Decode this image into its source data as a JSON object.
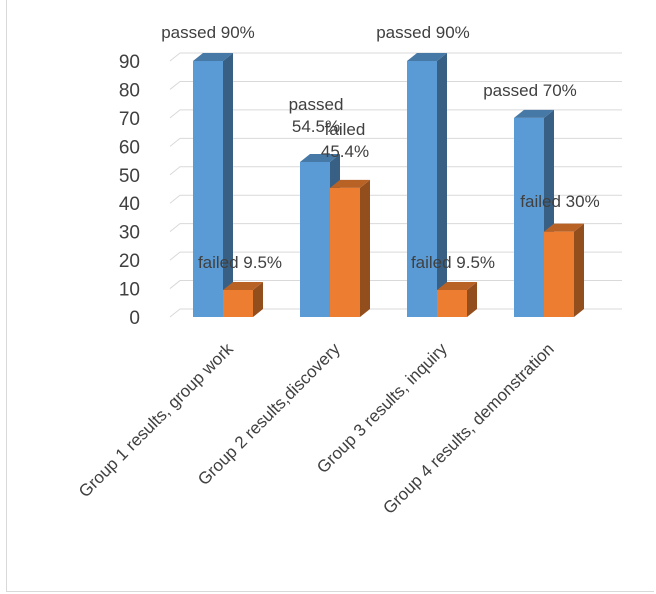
{
  "chart_data": {
    "type": "bar",
    "style": "3d-clustered-column",
    "categories": [
      "Group 1 results, group work",
      "Group 2 results,discovery",
      "Group 3  results, inquiry",
      "Group 4  results, demonstration"
    ],
    "series": [
      {
        "values": [
          90,
          54.5,
          90,
          70
        ],
        "color": "#5b9bd5",
        "labels": [
          "passed 90%",
          "passed 54.5%",
          "passed 90%",
          "passed 70%"
        ]
      },
      {
        "values": [
          9.5,
          45.4,
          9.5,
          30
        ],
        "color": "#ed7d31",
        "labels": [
          "failed 9.5%",
          "failed 45.4%",
          "failed 9.5%",
          "failed 30%"
        ]
      }
    ],
    "yticks": [
      "0",
      "10",
      "20",
      "30",
      "40",
      "50",
      "60",
      "70",
      "80",
      "90"
    ],
    "ylim": [
      0,
      90
    ],
    "grid": true,
    "legend": "none",
    "title": "",
    "xlabel": "",
    "ylabel": ""
  }
}
